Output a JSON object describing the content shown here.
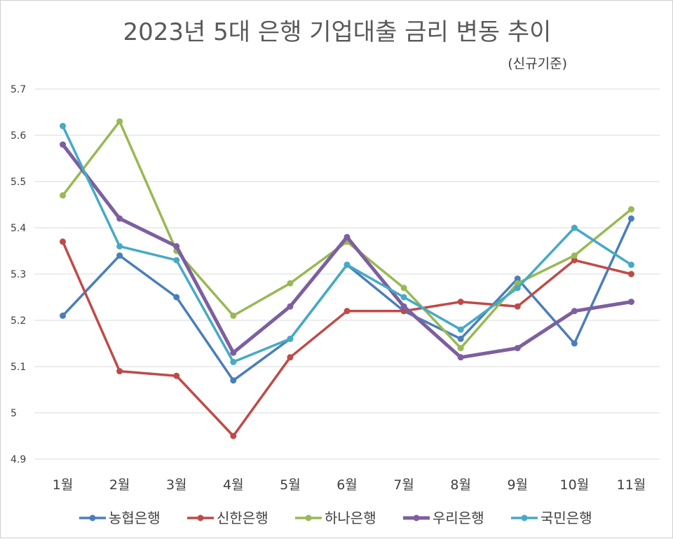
{
  "chart_data": {
    "type": "line",
    "title": "2023년 5대 은행 기업대출 금리 변동 추이",
    "subtitle": "(신규기준)",
    "categories": [
      "1월",
      "2월",
      "3월",
      "4월",
      "5월",
      "6월",
      "7월",
      "8월",
      "9월",
      "10월",
      "11월"
    ],
    "y_ticks": [
      "4.9",
      "5",
      "5.1",
      "5.2",
      "5.3",
      "5.4",
      "5.5",
      "5.6",
      "5.7"
    ],
    "ylim": [
      4.9,
      5.7
    ],
    "grid": true,
    "legend_position": "bottom",
    "series": [
      {
        "name": "농협은행",
        "color": "#4a7ebb",
        "values": [
          5.21,
          5.34,
          5.25,
          5.07,
          5.16,
          5.32,
          5.22,
          5.16,
          5.29,
          5.15,
          5.42
        ]
      },
      {
        "name": "신한은행",
        "color": "#be4b48",
        "values": [
          5.37,
          5.09,
          5.08,
          4.95,
          5.12,
          5.22,
          5.22,
          5.24,
          5.23,
          5.33,
          5.3
        ]
      },
      {
        "name": "하나은행",
        "color": "#98b954",
        "values": [
          5.47,
          5.63,
          5.35,
          5.21,
          5.28,
          5.37,
          5.27,
          5.14,
          5.28,
          5.34,
          5.44
        ]
      },
      {
        "name": "우리은행",
        "color": "#7d5fa0",
        "values": [
          5.58,
          5.42,
          5.36,
          5.13,
          5.23,
          5.38,
          5.23,
          5.12,
          5.14,
          5.22,
          5.24
        ]
      },
      {
        "name": "국민은행",
        "color": "#46aac5",
        "values": [
          5.62,
          5.36,
          5.33,
          5.11,
          5.16,
          5.32,
          5.25,
          5.18,
          5.27,
          5.4,
          5.32
        ]
      }
    ]
  }
}
